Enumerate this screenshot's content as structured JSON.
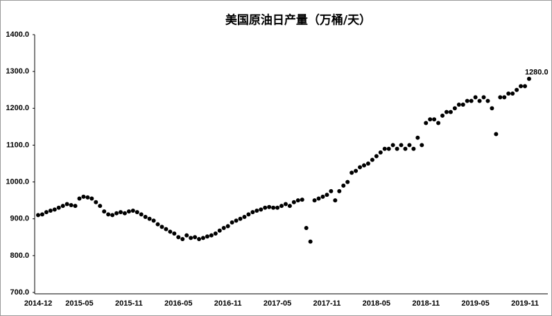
{
  "chart_data": {
    "type": "scatter",
    "title": "美国原油日产量（万桶/天）",
    "categories": [
      "2014-12",
      null,
      null,
      null,
      null,
      null,
      null,
      null,
      null,
      null,
      "2015-05",
      null,
      null,
      null,
      null,
      null,
      null,
      null,
      null,
      null,
      null,
      null,
      "2015-11",
      null,
      null,
      null,
      null,
      null,
      null,
      null,
      null,
      null,
      null,
      null,
      "2016-05",
      null,
      null,
      null,
      null,
      null,
      null,
      null,
      null,
      null,
      null,
      null,
      "2016-11",
      null,
      null,
      null,
      null,
      null,
      null,
      null,
      null,
      null,
      null,
      null,
      "2017-05",
      null,
      null,
      null,
      null,
      null,
      null,
      null,
      null,
      null,
      null,
      null,
      "2017-11",
      null,
      null,
      null,
      null,
      null,
      null,
      null,
      null,
      null,
      null,
      null,
      "2018-05",
      null,
      null,
      null,
      null,
      null,
      null,
      null,
      null,
      null,
      null,
      null,
      "2018-11",
      null,
      null,
      null,
      null,
      null,
      null,
      null,
      null,
      null,
      null,
      null,
      "2019-05",
      null,
      null,
      null,
      null,
      null,
      null,
      null,
      null,
      null,
      null,
      null,
      "2019-11",
      null
    ],
    "values": [
      910,
      912,
      918,
      922,
      925,
      930,
      935,
      940,
      937,
      935,
      955,
      960,
      958,
      955,
      945,
      935,
      920,
      912,
      910,
      915,
      918,
      915,
      920,
      922,
      918,
      912,
      905,
      900,
      895,
      885,
      878,
      872,
      865,
      860,
      850,
      845,
      855,
      848,
      850,
      845,
      848,
      852,
      855,
      860,
      868,
      875,
      880,
      890,
      895,
      900,
      905,
      912,
      918,
      922,
      925,
      930,
      932,
      930,
      930,
      935,
      940,
      935,
      945,
      950,
      952,
      875,
      838,
      950,
      955,
      960,
      965,
      975,
      950,
      975,
      990,
      1000,
      1025,
      1030,
      1040,
      1045,
      1050,
      1060,
      1070,
      1080,
      1090,
      1090,
      1100,
      1090,
      1100,
      1090,
      1100,
      1090,
      1120,
      1100,
      1160,
      1170,
      1170,
      1160,
      1180,
      1190,
      1190,
      1200,
      1210,
      1210,
      1220,
      1220,
      1230,
      1220,
      1230,
      1220,
      1200,
      1130,
      1230,
      1230,
      1240,
      1240,
      1250,
      1260,
      1260,
      1280
    ],
    "color": "#000000",
    "annotation": "1280.0",
    "ylim": [
      700,
      1400
    ],
    "yticks": [
      {
        "value": 700,
        "label": "700.0"
      },
      {
        "value": 800,
        "label": "800.0"
      },
      {
        "value": 900,
        "label": "900.0"
      },
      {
        "value": 1000,
        "label": "1000.0"
      },
      {
        "value": 1100,
        "label": "1100.0"
      },
      {
        "value": 1200,
        "label": "1200.0"
      },
      {
        "value": 1300,
        "label": "1300.0"
      },
      {
        "value": 1400,
        "label": "1400.0"
      }
    ],
    "grid": false
  }
}
